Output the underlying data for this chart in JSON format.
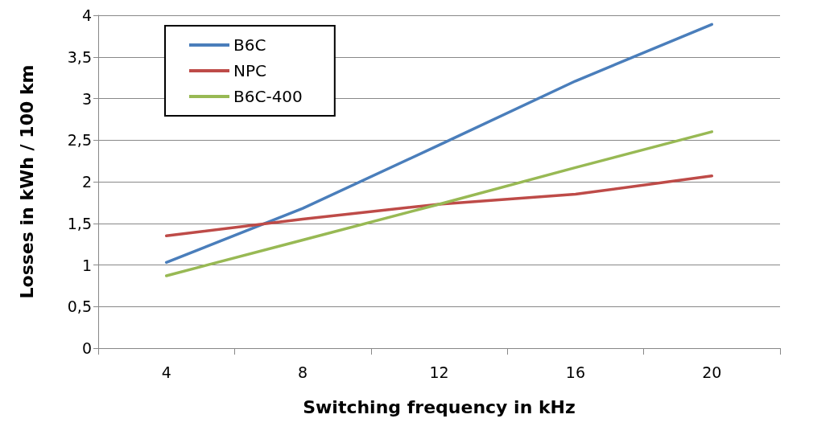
{
  "chart_data": {
    "type": "line",
    "xlabel": "Switching frequency in kHz",
    "ylabel": "Losses in kWh / 100 km",
    "categories": [
      "4",
      "8",
      "12",
      "16",
      "20"
    ],
    "series": [
      {
        "name": "B6C",
        "color": "#4a7ebb",
        "values": [
          1.03,
          1.68,
          2.44,
          3.21,
          3.89
        ]
      },
      {
        "name": "NPC",
        "color": "#be4b48",
        "values": [
          1.35,
          1.55,
          1.73,
          1.85,
          2.07
        ]
      },
      {
        "name": "B6C-400",
        "color": "#98b954",
        "values": [
          0.87,
          1.3,
          1.73,
          2.17,
          2.6
        ]
      }
    ],
    "ylim": [
      0,
      4
    ],
    "yticks": [
      0,
      {
        "value": 0.5,
        "label": "0,5"
      },
      1,
      {
        "value": 1.5,
        "label": "1,5"
      },
      2,
      {
        "value": 2.5,
        "label": "2,5"
      },
      3,
      {
        "value": 3.5,
        "label": "3,5"
      },
      4
    ],
    "grid": "y",
    "legend": "top left",
    "marker": "none",
    "line_style": "solid"
  }
}
